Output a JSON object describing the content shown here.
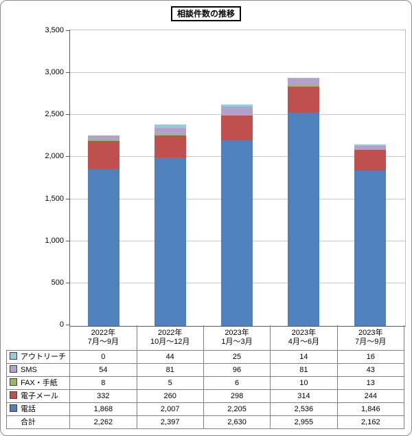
{
  "title": "相談件数の推移",
  "chart_data": {
    "type": "bar",
    "stacked": true,
    "title": "相談件数の推移",
    "xlabel": "",
    "ylabel": "",
    "ylim": [
      0,
      3500
    ],
    "ytick_step": 500,
    "yticks": [
      "3,500",
      "3,000",
      "2,500",
      "2,000",
      "1,500",
      "1,000",
      "500",
      "0"
    ],
    "grid": true,
    "legend_position": "data-table-keys",
    "categories": [
      {
        "line1": "2022年",
        "line2": "7月～9月"
      },
      {
        "line1": "2022年",
        "line2": "10月～12月"
      },
      {
        "line1": "2023年",
        "line2": "1月～3月"
      },
      {
        "line1": "2023年",
        "line2": "4月～6月"
      },
      {
        "line1": "2023年",
        "line2": "7月～9月"
      }
    ],
    "series": [
      {
        "name": "電話",
        "color": "#4F81BD",
        "values": [
          1868,
          2007,
          2205,
          2536,
          1846
        ]
      },
      {
        "name": "電子メール",
        "color": "#C0504D",
        "values": [
          332,
          260,
          298,
          314,
          244
        ]
      },
      {
        "name": "FAX・手紙",
        "color": "#9BBB59",
        "values": [
          8,
          5,
          6,
          10,
          13
        ]
      },
      {
        "name": "SMS",
        "color": "#B3A2C7",
        "values": [
          54,
          81,
          96,
          81,
          43
        ]
      },
      {
        "name": "アウトリーチ",
        "color": "#92CDDC",
        "values": [
          0,
          44,
          25,
          14,
          16
        ]
      }
    ],
    "table_row_order": [
      "アウトリーチ",
      "SMS",
      "FAX・手紙",
      "電子メール",
      "電話",
      "合計"
    ],
    "total": {
      "label": "合計",
      "values": [
        2262,
        2397,
        2630,
        2955,
        2162
      ]
    }
  }
}
